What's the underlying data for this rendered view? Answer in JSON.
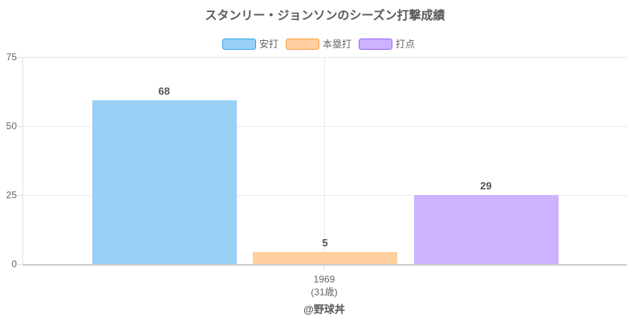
{
  "title": "スタンリー・ジョンソンのシーズン打撃成績",
  "credit": "@野球丼",
  "legend": {
    "items": [
      {
        "label": "安打",
        "fill": "#9AD0F5",
        "border": "#36A2EB"
      },
      {
        "label": "本塁打",
        "fill": "#FFCF9F",
        "border": "#FF9F40"
      },
      {
        "label": "打点",
        "fill": "#CCB2FF",
        "border": "#9966FF"
      }
    ]
  },
  "chart_data": {
    "type": "bar",
    "title": "スタンリー・ジョンソンのシーズン打撃成績",
    "categories": [
      "1969"
    ],
    "category_sublabels": [
      "(31歳)"
    ],
    "series": [
      {
        "name": "安打",
        "value": 68,
        "color": "#9AD0F5"
      },
      {
        "name": "本塁打",
        "value": 5,
        "color": "#FFCF9F"
      },
      {
        "name": "打点",
        "value": 29,
        "color": "#CCB2FF"
      }
    ],
    "ylim": [
      0,
      75
    ],
    "yticks": [
      0,
      25,
      50,
      75
    ],
    "ytick_labels_top_to_bottom": [
      "75",
      "50",
      "25",
      "0"
    ],
    "grid": true,
    "legend_position": "top",
    "annotation": "@野球丼",
    "rendered_values": [
      59.3,
      4.4,
      25.0
    ],
    "rendered_values_note": "bars in screenshot drawn at ~87% of labeled values (animation frame); heights derived from rendered_values on the 0-75 axis"
  }
}
